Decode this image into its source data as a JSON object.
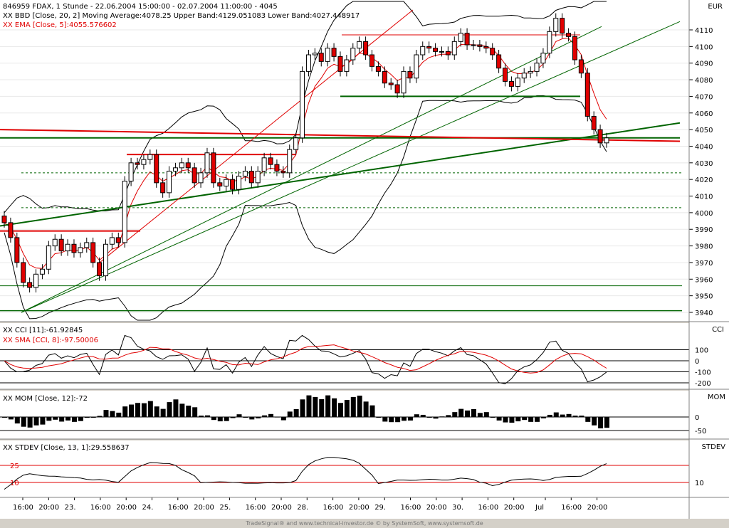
{
  "colors": {
    "frame_bg": "#d4d0c8",
    "plot_bg": "#ffffff",
    "grid": "#a0a0a0",
    "price": "#000000",
    "red": "#e00000",
    "green": "#006400",
    "text": "#000000"
  },
  "header": {
    "line1": "846959  FDAX, 1 Stunde - 22.06.2004 15:00:00 - 02.07.2004 11:00:00 - 4045",
    "line2": "XX BBD [Close, 20, 2] Moving Average:4078.25 Upper Band:4129.051083 Lower Band:4027.448917",
    "line3": "XX EMA [Close, 5]:4055.576602"
  },
  "panels": {
    "price_unit": "EUR",
    "cci": {
      "label": "CCI",
      "line1": "XX CCI [11]:-61.92845",
      "line2": "XX SMA [CCI, 8]:-97.50006",
      "ticks": [
        "100",
        "0",
        "-100",
        "-200"
      ]
    },
    "mom": {
      "label": "MOM",
      "line1": "XX MOM [Close, 12]:-72",
      "ticks": [
        "0",
        "-50"
      ]
    },
    "stdev": {
      "label": "STDEV",
      "line1": "XX STDEV [Close, 13, 1]:29.558637",
      "ticks": [
        "10"
      ],
      "levels": [
        "25",
        "10"
      ]
    }
  },
  "footer": "TradeSignal® and www.technical-investor.de © by SystemSoft, www.systemsoft.de",
  "chart_data": {
    "type": "candlestick",
    "title": "846959  FDAX, 1 Stunde - 22.06.2004 15:00:00 - 02.07.2004 11:00:00 - 4045",
    "price_axis": {
      "ticks": [
        3940,
        3950,
        3960,
        3970,
        3980,
        3990,
        4000,
        4010,
        4020,
        4030,
        4040,
        4050,
        4060,
        4070,
        4080,
        4090,
        4100,
        4110
      ],
      "range": [
        3937,
        4122
      ],
      "unit": "EUR"
    },
    "x_labels": [
      "16:00",
      "20:00",
      "23.",
      "16:00",
      "20:00",
      "24.",
      "16:00",
      "20:00",
      "25.",
      "16:00",
      "20:00",
      "28.",
      "16:00",
      "20:00",
      "29.",
      "16:00",
      "20:00",
      "30.",
      "16:00",
      "20:00",
      "Jul",
      "16:00",
      "20:00"
    ],
    "close": [
      3994,
      3985,
      3970,
      3958,
      3955,
      3963,
      3966,
      3980,
      3984,
      3977,
      3981,
      3976,
      3979,
      3982,
      3970,
      3962,
      3981,
      3985,
      3982,
      4019,
      4030,
      4029,
      4032,
      4035,
      4018,
      4012,
      4025,
      4027,
      4030,
      4027,
      4018,
      4024,
      4036,
      4018,
      4016,
      4020,
      4014,
      4022,
      4025,
      4018,
      4025,
      4033,
      4029,
      4025,
      4024,
      4038,
      4045,
      4085,
      4095,
      4096,
      4091,
      4099,
      4094,
      4085,
      4092,
      4099,
      4103,
      4095,
      4088,
      4085,
      4078,
      4077,
      4072,
      4085,
      4081,
      4095,
      4100,
      4099,
      4097,
      4097,
      4095,
      4103,
      4108,
      4101,
      4101,
      4100,
      4099,
      4095,
      4087,
      4079,
      4076,
      4081,
      4084,
      4085,
      4090,
      4096,
      4109,
      4117,
      4108,
      4106,
      4092,
      4084,
      4058,
      4050,
      4042,
      4045
    ],
    "indicators": {
      "bollinger": {
        "period": 20,
        "stddev": 2,
        "moving_average": 4078.25,
        "upper": 4129.051083,
        "lower": 4027.448917
      },
      "ema": {
        "period": 5,
        "value": 4055.576602
      },
      "cci": {
        "period": 11,
        "value": -61.92845,
        "sma8": -97.50006
      },
      "momentum": {
        "period": 12,
        "value": -72
      },
      "stdev": {
        "period": 13,
        "value": 29.558637
      }
    }
  }
}
